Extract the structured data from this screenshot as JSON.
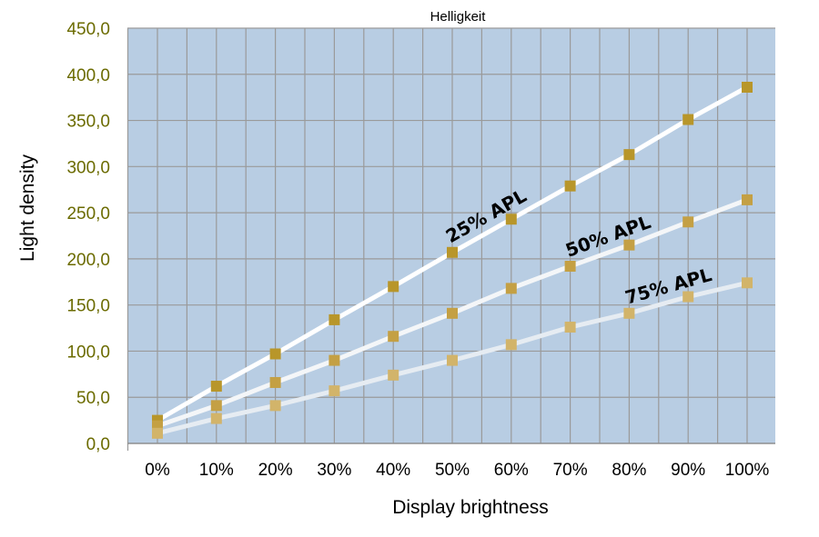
{
  "chart_data": {
    "type": "line",
    "title": "Helligkeit",
    "xlabel": "Display brightness",
    "ylabel": "Light density",
    "categories": [
      "0%",
      "10%",
      "20%",
      "30%",
      "40%",
      "50%",
      "60%",
      "70%",
      "80%",
      "90%",
      "100%"
    ],
    "ylim": [
      0,
      450
    ],
    "yticks": [
      0,
      50,
      100,
      150,
      200,
      250,
      300,
      350,
      400,
      450
    ],
    "ytick_labels": [
      "0,0",
      "50,0",
      "100,0",
      "150,0",
      "200,0",
      "250,0",
      "300,0",
      "350,0",
      "400,0",
      "450,0"
    ],
    "grid": true,
    "series": [
      {
        "name": "25% APL",
        "values": [
          25,
          62,
          97,
          134,
          170,
          207,
          243,
          279,
          313,
          351,
          386
        ],
        "line_color": "#ffffff",
        "marker_color": "#b8962a",
        "label_at_index": 5
      },
      {
        "name": "50% APL",
        "values": [
          19,
          41,
          66,
          90,
          116,
          141,
          168,
          192,
          215,
          240,
          264
        ],
        "line_color": "#f4f6f8",
        "marker_color": "#c4a044",
        "label_at_index": 7
      },
      {
        "name": "75% APL",
        "values": [
          11,
          27,
          41,
          57,
          74,
          90,
          107,
          126,
          141,
          159,
          174
        ],
        "line_color": "#e6ecf2",
        "marker_color": "#d2b46a",
        "label_at_index": 8
      }
    ],
    "colors": {
      "plot_background": "#b8cde3",
      "gridline": "#9a9a9a",
      "ytick_text": "#6b6b00"
    }
  }
}
